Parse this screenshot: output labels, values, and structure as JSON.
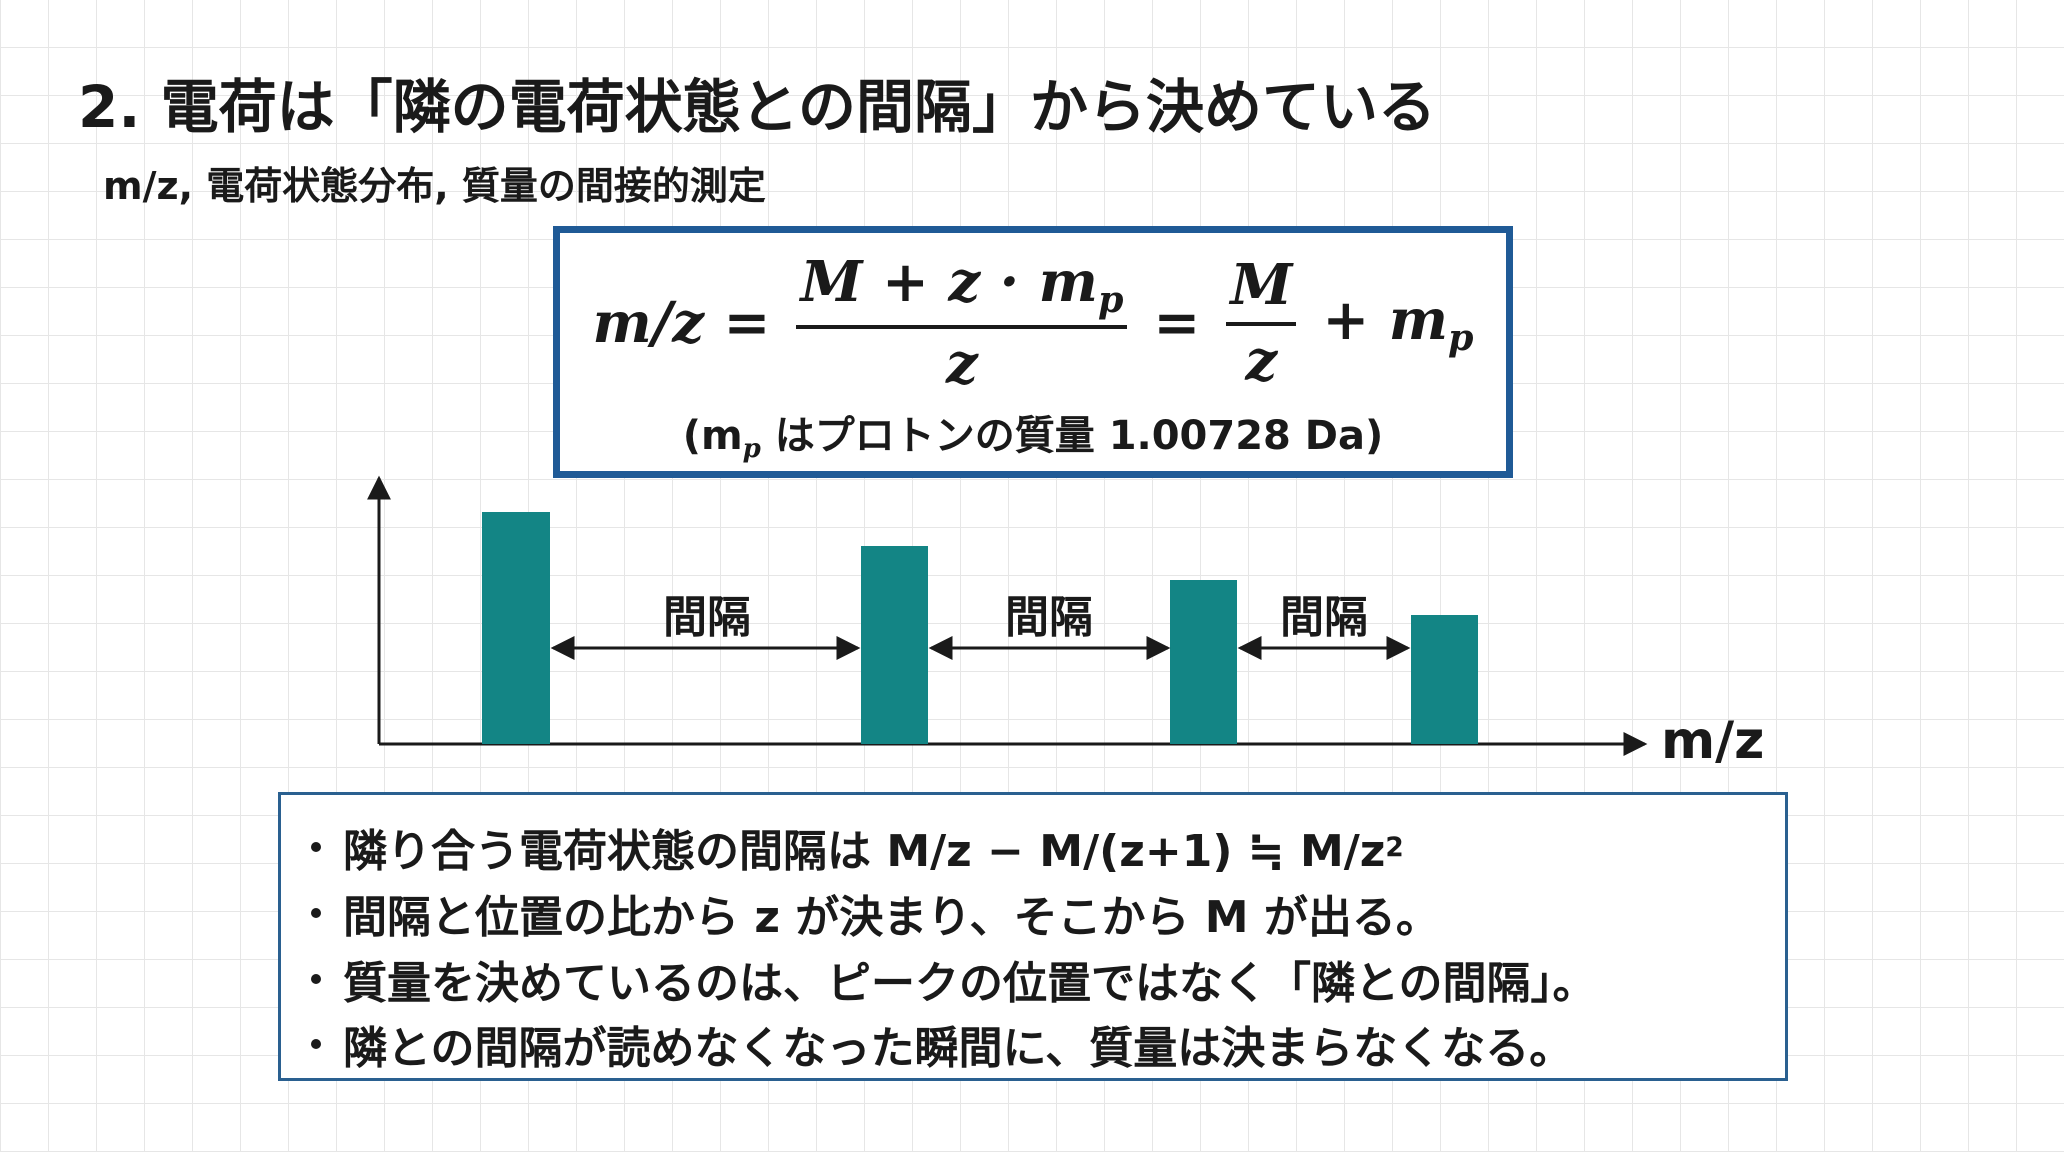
{
  "header": {
    "title": "2. 電荷は「隣の電荷状態との間隔」から決めている",
    "subtitle": "m/z, 電荷状態分布, 質量の間接的測定"
  },
  "formula": {
    "lhs": "m/z =",
    "numerator": "M + z · m",
    "numerator_sub": "p",
    "denominator": "z",
    "equals": "=",
    "numerator2": "M",
    "denominator2": "z",
    "tail": "+ m",
    "tail_sub": "p",
    "note_open": "(m",
    "note_sub": "p",
    "note_rest": " はプロトンの質量 1.00728 Da)"
  },
  "diagram": {
    "gap_labels": [
      "間隔",
      "間隔",
      "間隔"
    ],
    "x_axis_label": "m/z"
  },
  "bullets": [
    {
      "text": "隣り合う電荷状態の間隔は M/z − M/(z+1) ≒ M/z",
      "sup": "2"
    },
    {
      "text": "間隔と位置の比から z が決まり、そこから M が出る。"
    },
    {
      "text": "質量を決めているのは、ピークの位置ではなく「隣との間隔」。"
    },
    {
      "text": "隣との間隔が読めなくなった瞬間に、質量は決まらなくなる。"
    }
  ]
}
